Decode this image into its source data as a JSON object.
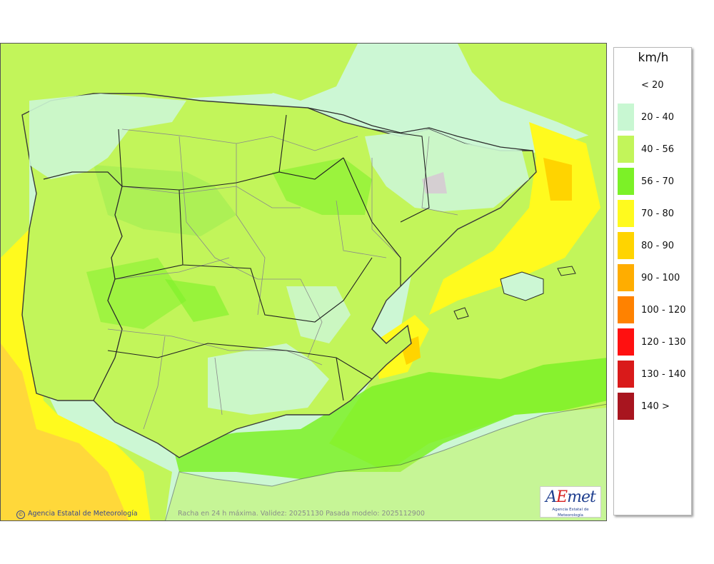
{
  "legend": {
    "unit": "km/h",
    "classes": [
      {
        "label": "< 20",
        "color": "#ffffff"
      },
      {
        "label": "20 - 40",
        "color": "#c8f7d2"
      },
      {
        "label": "40 - 56",
        "color": "#c2f55a"
      },
      {
        "label": "56 - 70",
        "color": "#7cf127"
      },
      {
        "label": "70 - 80",
        "color": "#fffa1e"
      },
      {
        "label": "80 - 90",
        "color": "#ffd400"
      },
      {
        "label": "90 - 100",
        "color": "#ffad00"
      },
      {
        "label": "100 - 120",
        "color": "#ff8200"
      },
      {
        "label": "120 - 130",
        "color": "#ff1010"
      },
      {
        "label": "130 - 140",
        "color": "#d91a1a"
      },
      {
        "label": "140 >",
        "color": "#a8151f"
      }
    ]
  },
  "map": {
    "credit": "Agencia Estatal de Meteorología",
    "credit_icon": "copyright-icon",
    "caption": "Racha en 24 h máxima. Validez: 20251130 Pasada modelo: 2025112900",
    "logo": {
      "word_a": "A",
      "word_hl": "E",
      "word_b": "met",
      "subtitle": "Agencia Estatal de Meteorología"
    }
  }
}
